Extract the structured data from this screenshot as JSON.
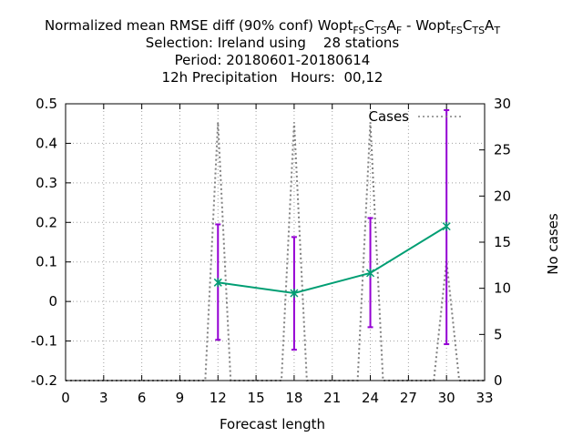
{
  "chart_data": {
    "type": "line",
    "title_lines": [
      "Normalized mean RMSE diff (90% conf) Wopt",
      "Selection: Ireland using    28 stations",
      "Period: 20180601-20180614",
      "12h Precipitation   Hours:  00,12"
    ],
    "title_parts": {
      "prefix": "Normalized mean RMSE diff (90% conf) Wopt",
      "sub1": "FS",
      "c": "C",
      "sub2": "TS",
      "a": "A",
      "sub3": "F",
      "sep": " - Wopt",
      "sub4": "FS",
      "c2": "C",
      "sub5": "TS",
      "a2": "A",
      "sub6": "T"
    },
    "xlabel": "Forecast length",
    "ylabel": "",
    "y2label": "No cases",
    "xlim": [
      0,
      33
    ],
    "ylim": [
      -0.2,
      0.5
    ],
    "y2lim": [
      0,
      30
    ],
    "xticks": [
      "0",
      "3",
      "6",
      "9",
      "12",
      "15",
      "18",
      "21",
      "24",
      "27",
      "30",
      "33"
    ],
    "yticks": [
      "-0.2",
      "-0.1",
      "0",
      "0.1",
      "0.2",
      "0.3",
      "0.4",
      "0.5"
    ],
    "y2ticks": [
      "0",
      "5",
      "10",
      "15",
      "20",
      "25",
      "30"
    ],
    "grid": true,
    "legend": {
      "position": "top-right",
      "entries": [
        "Cases"
      ]
    },
    "series": [
      {
        "x": [
          12,
          18,
          24,
          30
        ],
        "values": [
          0.048,
          0.021,
          0.072,
          0.19
        ],
        "err_low": [
          -0.097,
          -0.122,
          -0.065,
          -0.108
        ],
        "err_high": [
          0.195,
          0.163,
          0.211,
          0.484
        ],
        "color": "#009e73",
        "errorbar_color": "#9400d3"
      },
      {
        "name": "Cases",
        "axis": "y2",
        "style": "dotted",
        "color": "#808080",
        "x": [
          0,
          11,
          12,
          13,
          17,
          18,
          19,
          23,
          24,
          25,
          29,
          30,
          31,
          33
        ],
        "values": [
          0,
          0,
          28,
          0,
          0,
          28,
          0,
          0,
          28,
          0,
          0,
          13,
          0,
          0
        ]
      }
    ]
  }
}
